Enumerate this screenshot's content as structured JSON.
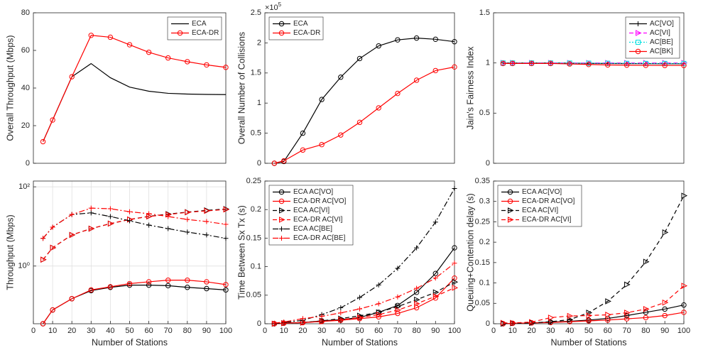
{
  "chart_data": [
    {
      "type": "line",
      "ylabel": "Overall Throughput (Mbps)",
      "x": [
        5,
        10,
        20,
        30,
        40,
        50,
        60,
        70,
        80,
        90,
        100
      ],
      "xlim": [
        0,
        100
      ],
      "ylim": [
        0,
        80
      ],
      "yticks": [
        0,
        20,
        40,
        60,
        80
      ],
      "log": false,
      "grid": false,
      "legend": "northeast",
      "series": [
        {
          "name": "ECA",
          "color": "#000000",
          "marker": "none",
          "dash": "solid",
          "values": [
            11.5,
            23,
            46,
            53,
            45.5,
            40.5,
            38.3,
            37.2,
            36.8,
            36.6,
            36.5
          ]
        },
        {
          "name": "ECA-DR",
          "color": "#ff0000",
          "marker": "circle",
          "dash": "solid",
          "values": [
            11.5,
            23,
            46,
            68,
            67,
            63,
            59,
            56,
            54,
            52.3,
            51
          ]
        }
      ]
    },
    {
      "type": "line",
      "ylabel": "Overall Number of Collisions",
      "multiplier": "×10",
      "multiplier_power": "5",
      "x": [
        5,
        10,
        20,
        30,
        40,
        50,
        60,
        70,
        80,
        90,
        100
      ],
      "xlim": [
        0,
        100
      ],
      "ylim": [
        0,
        2.5
      ],
      "yticks": [
        0,
        0.5,
        1,
        1.5,
        2,
        2.5
      ],
      "log": false,
      "grid": false,
      "legend": "northwest",
      "series": [
        {
          "name": "ECA",
          "color": "#000000",
          "marker": "circle",
          "dash": "solid",
          "values": [
            0,
            0.03,
            0.5,
            1.06,
            1.43,
            1.74,
            1.95,
            2.05,
            2.08,
            2.06,
            2.02
          ]
        },
        {
          "name": "ECA-DR",
          "color": "#ff0000",
          "marker": "circle",
          "dash": "solid",
          "values": [
            0,
            0.04,
            0.22,
            0.31,
            0.47,
            0.68,
            0.92,
            1.16,
            1.38,
            1.54,
            1.6
          ]
        }
      ]
    },
    {
      "type": "line",
      "ylabel": "Jain's Fairness Index",
      "x": [
        5,
        10,
        20,
        30,
        40,
        50,
        60,
        70,
        80,
        90,
        100
      ],
      "xlim": [
        0,
        100
      ],
      "ylim": [
        0,
        1.5
      ],
      "yticks": [
        0,
        0.5,
        1,
        1.5
      ],
      "log": false,
      "grid": false,
      "legend": "northeast",
      "series": [
        {
          "name": "AC[VO]",
          "color": "#000000",
          "marker": "plus",
          "dash": "solid",
          "values": [
            1,
            1,
            1,
            1,
            0.998,
            0.996,
            0.995,
            0.994,
            0.993,
            0.992,
            0.992
          ]
        },
        {
          "name": "AC[VI]",
          "color": "#ff00ff",
          "marker": "triangle",
          "dash": "dashed",
          "values": [
            1,
            1,
            1,
            1,
            1,
            1,
            1,
            1,
            1,
            1,
            1
          ]
        },
        {
          "name": "AC[BE]",
          "color": "#00e0e0",
          "marker": "square",
          "dash": "dotted",
          "values": [
            1,
            1,
            1,
            1,
            0.999,
            0.998,
            0.997,
            0.996,
            0.995,
            0.995,
            0.995
          ]
        },
        {
          "name": "AC[BK]",
          "color": "#ff0000",
          "marker": "circle",
          "dash": "solid",
          "values": [
            0.995,
            0.995,
            0.995,
            0.995,
            0.99,
            0.985,
            0.98,
            0.978,
            0.976,
            0.975,
            0.975
          ]
        }
      ]
    },
    {
      "type": "line",
      "ylabel": "Throughput (Mbps)",
      "xlabel": "Number of Stations",
      "x": [
        5,
        10,
        20,
        30,
        40,
        50,
        60,
        70,
        80,
        90,
        100
      ],
      "xlim": [
        0,
        100
      ],
      "xticks": [
        0,
        10,
        20,
        30,
        40,
        50,
        60,
        70,
        80,
        90,
        100
      ],
      "ylim": [
        0.035,
        140
      ],
      "yticks": [
        {
          "value": 1,
          "label": "10⁰"
        },
        {
          "value": 100,
          "label": "10²"
        }
      ],
      "log": true,
      "grid": true,
      "legend": "none",
      "series": [
        {
          "name": "ECA AC[VO]",
          "color": "#000000",
          "marker": "circle",
          "dash": "solid",
          "values": [
            0.035,
            0.078,
            0.15,
            0.24,
            0.29,
            0.33,
            0.33,
            0.32,
            0.29,
            0.27,
            0.25
          ]
        },
        {
          "name": "ECA-DR AC[VO]",
          "color": "#ff0000",
          "marker": "circle",
          "dash": "solid",
          "values": [
            0.035,
            0.078,
            0.15,
            0.25,
            0.3,
            0.36,
            0.4,
            0.44,
            0.44,
            0.4,
            0.34
          ]
        },
        {
          "name": "ECA AC[VI]",
          "color": "#000000",
          "marker": "triangle",
          "dash": "dashed",
          "values": [
            1.45,
            2.9,
            6.1,
            8.8,
            11.8,
            15,
            18,
            20.5,
            23,
            25.5,
            27.5
          ]
        },
        {
          "name": "ECA-DR AC[VI]",
          "color": "#ff0000",
          "marker": "triangle",
          "dash": "dashed",
          "values": [
            1.45,
            2.9,
            6.1,
            8.8,
            11.8,
            15,
            17.8,
            20,
            22.7,
            24.7,
            26.8
          ]
        },
        {
          "name": "ECA AC[BE]",
          "color": "#000000",
          "marker": "plus",
          "dash": "dashdot",
          "values": [
            5,
            9.6,
            20,
            22,
            17.8,
            13.9,
            10.8,
            8.8,
            7.2,
            6.1,
            5
          ]
        },
        {
          "name": "ECA-DR AC[BE]",
          "color": "#ff0000",
          "marker": "plus",
          "dash": "dashdot",
          "values": [
            5,
            9.6,
            20,
            29,
            28,
            23.5,
            21,
            17.8,
            15,
            13.3,
            11.3
          ]
        }
      ]
    },
    {
      "type": "line",
      "ylabel": "Time Between Sx Tx (s)",
      "xlabel": "Number of Stations",
      "x": [
        5,
        10,
        20,
        30,
        40,
        50,
        60,
        70,
        80,
        90,
        100
      ],
      "xlim": [
        0,
        100
      ],
      "xticks": [
        0,
        10,
        20,
        30,
        40,
        50,
        60,
        70,
        80,
        90,
        100
      ],
      "ylim": [
        0,
        0.25
      ],
      "yticks": [
        0,
        0.05,
        0.1,
        0.15,
        0.2,
        0.25
      ],
      "log": false,
      "grid": false,
      "legend": "northwest",
      "series": [
        {
          "name": "ECA AC[VO]",
          "color": "#000000",
          "marker": "circle",
          "dash": "solid",
          "values": [
            0,
            0.001,
            0.002,
            0.005,
            0.007,
            0.011,
            0.02,
            0.032,
            0.055,
            0.088,
            0.133
          ]
        },
        {
          "name": "ECA-DR AC[VO]",
          "color": "#ff0000",
          "marker": "circle",
          "dash": "solid",
          "values": [
            0,
            0.001,
            0.002,
            0.004,
            0.006,
            0.009,
            0.012,
            0.018,
            0.028,
            0.045,
            0.08
          ]
        },
        {
          "name": "ECA AC[VI]",
          "color": "#000000",
          "marker": "triangle",
          "dash": "dashed",
          "values": [
            0,
            0.001,
            0.002,
            0.005,
            0.009,
            0.014,
            0.02,
            0.03,
            0.042,
            0.055,
            0.073
          ]
        },
        {
          "name": "ECA-DR AC[VI]",
          "color": "#ff0000",
          "marker": "triangle",
          "dash": "dashed",
          "values": [
            0,
            0.001,
            0.002,
            0.004,
            0.007,
            0.011,
            0.016,
            0.024,
            0.035,
            0.048,
            0.063
          ]
        },
        {
          "name": "ECA AC[BE]",
          "color": "#000000",
          "marker": "plus",
          "dash": "dashdot",
          "values": [
            0,
            0.002,
            0.006,
            0.016,
            0.028,
            0.046,
            0.068,
            0.097,
            0.133,
            0.178,
            0.237
          ]
        },
        {
          "name": "ECA-DR AC[BE]",
          "color": "#ff0000",
          "marker": "plus",
          "dash": "dashdot",
          "values": [
            0.001,
            0.003,
            0.009,
            0.013,
            0.019,
            0.026,
            0.035,
            0.047,
            0.062,
            0.08,
            0.106
          ]
        }
      ]
    },
    {
      "type": "line",
      "ylabel": "Queuing+Contention delay (s)",
      "xlabel": "Number of Stations",
      "x": [
        5,
        10,
        20,
        30,
        40,
        50,
        60,
        70,
        80,
        90,
        100
      ],
      "xlim": [
        0,
        100
      ],
      "xticks": [
        0,
        10,
        20,
        30,
        40,
        50,
        60,
        70,
        80,
        90,
        100
      ],
      "ylim": [
        0,
        0.35
      ],
      "yticks": [
        0,
        0.05,
        0.1,
        0.15,
        0.2,
        0.25,
        0.3,
        0.35
      ],
      "log": false,
      "grid": false,
      "legend": "northwest",
      "series": [
        {
          "name": "ECA AC[VO]",
          "color": "#000000",
          "marker": "circle",
          "dash": "solid",
          "values": [
            0,
            0.001,
            0.002,
            0.004,
            0.006,
            0.009,
            0.013,
            0.02,
            0.028,
            0.036,
            0.046
          ]
        },
        {
          "name": "ECA-DR AC[VO]",
          "color": "#ff0000",
          "marker": "circle",
          "dash": "solid",
          "values": [
            0,
            0.001,
            0.002,
            0.003,
            0.005,
            0.007,
            0.009,
            0.012,
            0.015,
            0.02,
            0.028
          ]
        },
        {
          "name": "ECA AC[VI]",
          "color": "#000000",
          "marker": "triangle",
          "dash": "dashed",
          "values": [
            0,
            0.001,
            0.002,
            0.005,
            0.01,
            0.027,
            0.055,
            0.096,
            0.152,
            0.224,
            0.314
          ]
        },
        {
          "name": "ECA-DR AC[VI]",
          "color": "#ff0000",
          "marker": "triangle",
          "dash": "dashed",
          "values": [
            0.002,
            0.002,
            0.004,
            0.015,
            0.019,
            0.02,
            0.022,
            0.027,
            0.036,
            0.052,
            0.093
          ]
        }
      ]
    }
  ]
}
